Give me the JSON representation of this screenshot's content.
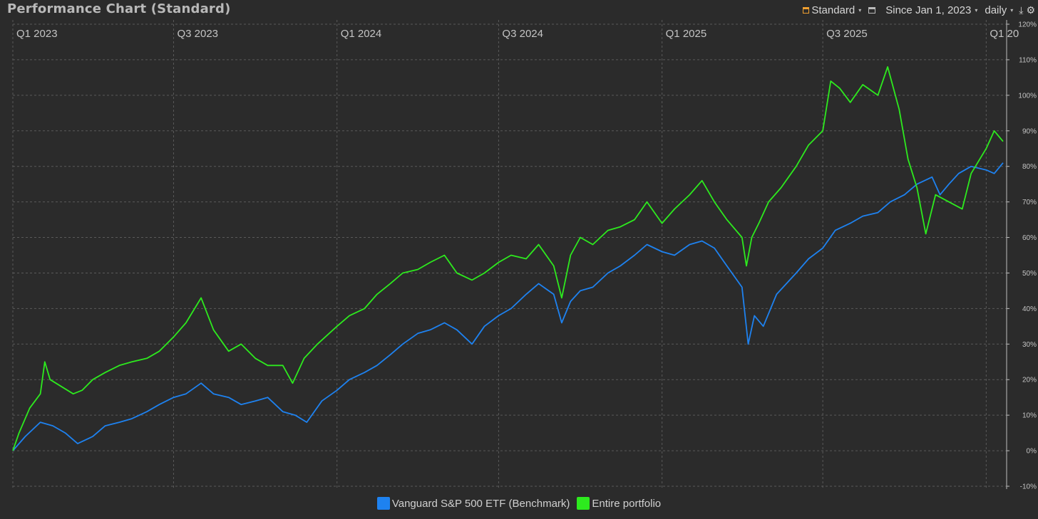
{
  "header": {
    "title": "Performance Chart (Standard)",
    "toolbar": {
      "chart_type_label": "Standard",
      "period_label": "Since Jan 1, 2023",
      "interval_label": "daily",
      "icons": [
        "chart-type-icon",
        "window-icon",
        "export-icon",
        "gear-icon"
      ]
    }
  },
  "colors": {
    "background": "#2b2b2b",
    "benchmark": "#1e82f0",
    "portfolio": "#2dea1e",
    "grid": "#5a5a5a"
  },
  "chart_data": {
    "type": "line",
    "title": "Performance Chart (Standard)",
    "x_axis": {
      "range": [
        "2023-01-01",
        "2026-01-24"
      ],
      "tick_labels": [
        "Q1 2023",
        "Q3 2023",
        "Q1 2024",
        "Q3 2024",
        "Q1 2025",
        "Q3 2025",
        "Q1 20"
      ],
      "tick_dates": [
        "2023-01-01",
        "2023-07-01",
        "2024-01-01",
        "2024-07-01",
        "2025-01-01",
        "2025-07-01",
        "2026-01-01"
      ],
      "position": "top"
    },
    "y_axis": {
      "range": [
        -10,
        120
      ],
      "unit": "%",
      "tick_labels": [
        "-10%",
        "0%",
        "10%",
        "20%",
        "30%",
        "40%",
        "50%",
        "60%",
        "70%",
        "80%",
        "90%",
        "100%",
        "110%",
        "120%"
      ],
      "tick_values": [
        -10,
        0,
        10,
        20,
        30,
        40,
        50,
        60,
        70,
        80,
        90,
        100,
        110,
        120
      ],
      "position": "right"
    },
    "grid": true,
    "legend_position": "bottom-center",
    "series": [
      {
        "name": "Vanguard S&P 500 ETF (Benchmark)",
        "color": "#1e82f0",
        "points": [
          [
            "2023-01-01",
            0
          ],
          [
            "2023-01-15",
            4
          ],
          [
            "2023-02-01",
            8
          ],
          [
            "2023-02-15",
            7
          ],
          [
            "2023-03-01",
            5
          ],
          [
            "2023-03-15",
            2
          ],
          [
            "2023-04-01",
            4
          ],
          [
            "2023-04-15",
            7
          ],
          [
            "2023-05-01",
            8
          ],
          [
            "2023-05-15",
            9
          ],
          [
            "2023-06-01",
            11
          ],
          [
            "2023-06-15",
            13
          ],
          [
            "2023-07-01",
            15
          ],
          [
            "2023-07-15",
            16
          ],
          [
            "2023-08-01",
            19
          ],
          [
            "2023-08-15",
            16
          ],
          [
            "2023-09-01",
            15
          ],
          [
            "2023-09-15",
            13
          ],
          [
            "2023-10-01",
            14
          ],
          [
            "2023-10-15",
            15
          ],
          [
            "2023-11-01",
            11
          ],
          [
            "2023-11-15",
            10
          ],
          [
            "2023-11-28",
            8
          ],
          [
            "2023-12-15",
            14
          ],
          [
            "2024-01-01",
            17
          ],
          [
            "2024-01-15",
            20
          ],
          [
            "2024-02-01",
            22
          ],
          [
            "2024-02-15",
            24
          ],
          [
            "2024-03-01",
            27
          ],
          [
            "2024-03-15",
            30
          ],
          [
            "2024-04-01",
            33
          ],
          [
            "2024-04-15",
            34
          ],
          [
            "2024-05-01",
            36
          ],
          [
            "2024-05-15",
            34
          ],
          [
            "2024-06-01",
            30
          ],
          [
            "2024-06-15",
            35
          ],
          [
            "2024-07-01",
            38
          ],
          [
            "2024-07-15",
            40
          ],
          [
            "2024-08-01",
            44
          ],
          [
            "2024-08-15",
            47
          ],
          [
            "2024-09-01",
            44
          ],
          [
            "2024-09-10",
            36
          ],
          [
            "2024-09-20",
            42
          ],
          [
            "2024-10-01",
            45
          ],
          [
            "2024-10-15",
            46
          ],
          [
            "2024-11-01",
            50
          ],
          [
            "2024-11-15",
            52
          ],
          [
            "2024-12-01",
            55
          ],
          [
            "2024-12-15",
            58
          ],
          [
            "2025-01-01",
            56
          ],
          [
            "2025-01-15",
            55
          ],
          [
            "2025-02-01",
            58
          ],
          [
            "2025-02-15",
            59
          ],
          [
            "2025-03-01",
            57
          ],
          [
            "2025-03-15",
            52
          ],
          [
            "2025-04-01",
            46
          ],
          [
            "2025-04-08",
            30
          ],
          [
            "2025-04-15",
            38
          ],
          [
            "2025-04-25",
            35
          ],
          [
            "2025-05-10",
            44
          ],
          [
            "2025-06-01",
            50
          ],
          [
            "2025-06-15",
            54
          ],
          [
            "2025-07-01",
            57
          ],
          [
            "2025-07-15",
            62
          ],
          [
            "2025-08-01",
            64
          ],
          [
            "2025-08-15",
            66
          ],
          [
            "2025-09-01",
            67
          ],
          [
            "2025-09-15",
            70
          ],
          [
            "2025-10-01",
            72
          ],
          [
            "2025-10-15",
            75
          ],
          [
            "2025-11-01",
            77
          ],
          [
            "2025-11-10",
            72
          ],
          [
            "2025-11-20",
            75
          ],
          [
            "2025-12-01",
            78
          ],
          [
            "2025-12-15",
            80
          ],
          [
            "2026-01-01",
            79
          ],
          [
            "2026-01-10",
            78
          ],
          [
            "2026-01-20",
            81
          ]
        ]
      },
      {
        "name": "Entire portfolio",
        "color": "#2dea1e",
        "points": [
          [
            "2023-01-01",
            0
          ],
          [
            "2023-01-08",
            5
          ],
          [
            "2023-01-20",
            12
          ],
          [
            "2023-02-01",
            16
          ],
          [
            "2023-02-06",
            25
          ],
          [
            "2023-02-12",
            20
          ],
          [
            "2023-02-25",
            18
          ],
          [
            "2023-03-10",
            16
          ],
          [
            "2023-03-20",
            17
          ],
          [
            "2023-04-01",
            20
          ],
          [
            "2023-04-15",
            22
          ],
          [
            "2023-05-01",
            24
          ],
          [
            "2023-05-15",
            25
          ],
          [
            "2023-06-01",
            26
          ],
          [
            "2023-06-15",
            28
          ],
          [
            "2023-07-01",
            32
          ],
          [
            "2023-07-15",
            36
          ],
          [
            "2023-08-01",
            43
          ],
          [
            "2023-08-15",
            34
          ],
          [
            "2023-09-01",
            28
          ],
          [
            "2023-09-15",
            30
          ],
          [
            "2023-10-01",
            26
          ],
          [
            "2023-10-15",
            24
          ],
          [
            "2023-11-01",
            24
          ],
          [
            "2023-11-12",
            19
          ],
          [
            "2023-11-25",
            26
          ],
          [
            "2023-12-10",
            30
          ],
          [
            "2024-01-01",
            35
          ],
          [
            "2024-01-15",
            38
          ],
          [
            "2024-02-01",
            40
          ],
          [
            "2024-02-15",
            44
          ],
          [
            "2024-03-01",
            47
          ],
          [
            "2024-03-15",
            50
          ],
          [
            "2024-04-01",
            51
          ],
          [
            "2024-04-15",
            53
          ],
          [
            "2024-05-01",
            55
          ],
          [
            "2024-05-15",
            50
          ],
          [
            "2024-06-01",
            48
          ],
          [
            "2024-06-15",
            50
          ],
          [
            "2024-07-01",
            53
          ],
          [
            "2024-07-15",
            55
          ],
          [
            "2024-08-01",
            54
          ],
          [
            "2024-08-15",
            58
          ],
          [
            "2024-09-01",
            52
          ],
          [
            "2024-09-10",
            43
          ],
          [
            "2024-09-20",
            55
          ],
          [
            "2024-10-01",
            60
          ],
          [
            "2024-10-15",
            58
          ],
          [
            "2024-11-01",
            62
          ],
          [
            "2024-11-15",
            63
          ],
          [
            "2024-12-01",
            65
          ],
          [
            "2024-12-15",
            70
          ],
          [
            "2025-01-01",
            64
          ],
          [
            "2025-01-15",
            68
          ],
          [
            "2025-02-01",
            72
          ],
          [
            "2025-02-15",
            76
          ],
          [
            "2025-03-01",
            70
          ],
          [
            "2025-03-15",
            65
          ],
          [
            "2025-04-01",
            60
          ],
          [
            "2025-04-06",
            52
          ],
          [
            "2025-04-12",
            60
          ],
          [
            "2025-04-20",
            64
          ],
          [
            "2025-05-01",
            70
          ],
          [
            "2025-05-15",
            74
          ],
          [
            "2025-06-01",
            80
          ],
          [
            "2025-06-15",
            86
          ],
          [
            "2025-07-01",
            90
          ],
          [
            "2025-07-10",
            104
          ],
          [
            "2025-07-20",
            102
          ],
          [
            "2025-08-01",
            98
          ],
          [
            "2025-08-15",
            103
          ],
          [
            "2025-09-01",
            100
          ],
          [
            "2025-09-12",
            108
          ],
          [
            "2025-09-25",
            96
          ],
          [
            "2025-10-05",
            82
          ],
          [
            "2025-10-15",
            74
          ],
          [
            "2025-10-25",
            61
          ],
          [
            "2025-11-05",
            72
          ],
          [
            "2025-11-20",
            70
          ],
          [
            "2025-12-05",
            68
          ],
          [
            "2025-12-15",
            78
          ],
          [
            "2026-01-01",
            85
          ],
          [
            "2026-01-10",
            90
          ],
          [
            "2026-01-20",
            87
          ]
        ]
      }
    ]
  }
}
